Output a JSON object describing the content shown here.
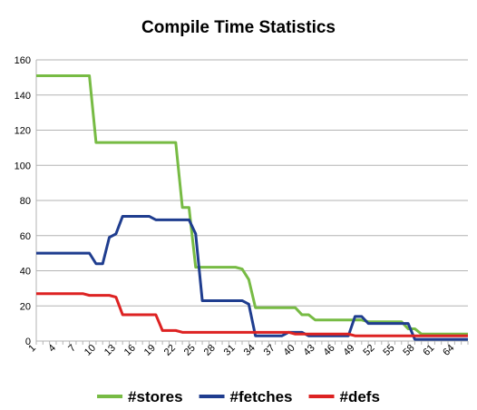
{
  "chart_data": {
    "type": "line",
    "title": "Compile Time Statistics",
    "xlabel": "",
    "ylabel": "",
    "xlim": [
      1,
      66
    ],
    "ylim": [
      0,
      160
    ],
    "y_ticks": [
      0,
      20,
      40,
      60,
      80,
      100,
      120,
      140,
      160
    ],
    "x_ticks": [
      1,
      4,
      7,
      10,
      13,
      16,
      19,
      22,
      25,
      28,
      31,
      34,
      37,
      40,
      43,
      46,
      49,
      52,
      55,
      58,
      61,
      64
    ],
    "grid": "horizontal",
    "legend_position": "bottom",
    "x": [
      1,
      2,
      3,
      4,
      5,
      6,
      7,
      8,
      9,
      10,
      11,
      12,
      13,
      14,
      15,
      16,
      17,
      18,
      19,
      20,
      21,
      22,
      23,
      24,
      25,
      26,
      27,
      28,
      29,
      30,
      31,
      32,
      33,
      34,
      35,
      36,
      37,
      38,
      39,
      40,
      41,
      42,
      43,
      44,
      45,
      46,
      47,
      48,
      49,
      50,
      51,
      52,
      53,
      54,
      55,
      56,
      57,
      58,
      59,
      60,
      61,
      62,
      63,
      64,
      65,
      66
    ],
    "series": [
      {
        "name": "#stores",
        "color": "#77bb44",
        "values": [
          151,
          151,
          151,
          151,
          151,
          151,
          151,
          151,
          151,
          113,
          113,
          113,
          113,
          113,
          113,
          113,
          113,
          113,
          113,
          113,
          113,
          113,
          76,
          76,
          42,
          42,
          42,
          42,
          42,
          42,
          42,
          41,
          35,
          19,
          19,
          19,
          19,
          19,
          19,
          19,
          15,
          15,
          12,
          12,
          12,
          12,
          12,
          12,
          12,
          12,
          11,
          11,
          11,
          11,
          11,
          11,
          7,
          7,
          4,
          4,
          4,
          4,
          4,
          4,
          4,
          4
        ]
      },
      {
        "name": "#fetches",
        "color": "#1f3d8f",
        "values": [
          50,
          50,
          50,
          50,
          50,
          50,
          50,
          50,
          50,
          44,
          44,
          59,
          61,
          71,
          71,
          71,
          71,
          71,
          69,
          69,
          69,
          69,
          69,
          69,
          61,
          23,
          23,
          23,
          23,
          23,
          23,
          23,
          21,
          3,
          3,
          3,
          3,
          3,
          5,
          5,
          5,
          3,
          3,
          3,
          3,
          3,
          3,
          3,
          14,
          14,
          10,
          10,
          10,
          10,
          10,
          10,
          10,
          1,
          1,
          1,
          1,
          1,
          1,
          1,
          1,
          1
        ]
      },
      {
        "name": "#defs",
        "color": "#dd2222",
        "values": [
          27,
          27,
          27,
          27,
          27,
          27,
          27,
          27,
          26,
          26,
          26,
          26,
          25,
          15,
          15,
          15,
          15,
          15,
          15,
          6,
          6,
          6,
          5,
          5,
          5,
          5,
          5,
          5,
          5,
          5,
          5,
          5,
          5,
          5,
          5,
          5,
          5,
          5,
          5,
          4,
          4,
          4,
          4,
          4,
          4,
          4,
          4,
          4,
          3,
          3,
          3,
          3,
          3,
          3,
          3,
          3,
          3,
          3,
          3,
          3,
          3,
          3,
          3,
          3,
          3,
          3
        ]
      }
    ]
  }
}
